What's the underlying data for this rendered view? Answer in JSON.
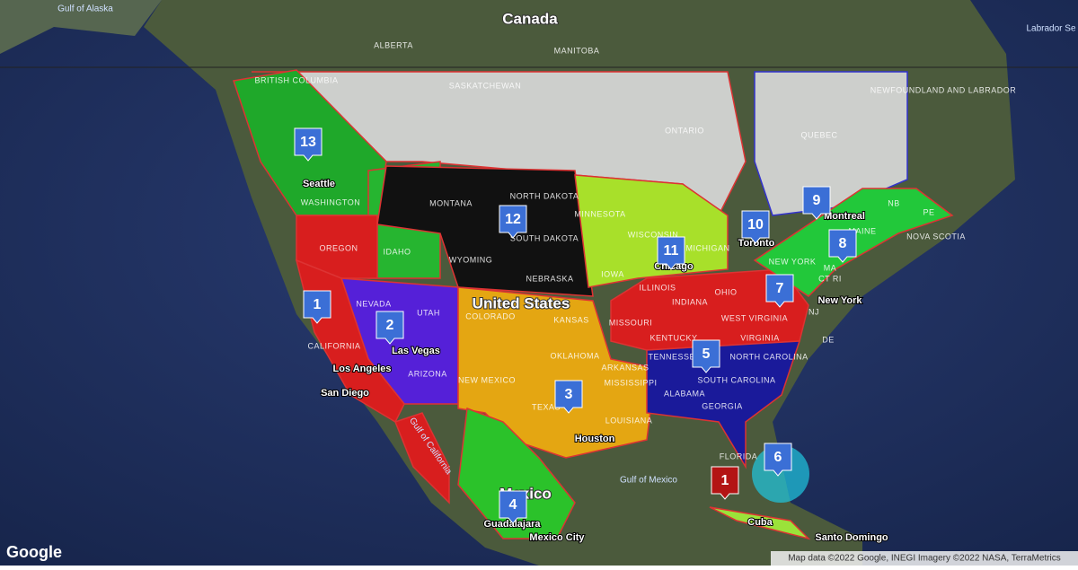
{
  "map": {
    "labels": [
      "Gulf of Alaska",
      "Canada",
      "ALBERTA",
      "MANITOBA",
      "Labrador Se",
      "BRITISH COLUMBIA",
      "SASKATCHEWAN",
      "NEWFOUNDLAND AND LABRADOR",
      "ONTARIO",
      "QUEBEC",
      "Seattle",
      "WASHINGTON",
      "MONTANA",
      "NORTH DAKOTA",
      "SOUTH DAKOTA",
      "MINNESOTA",
      "WISCONSIN",
      "MICHIGAN",
      "OREGON",
      "IDAHO",
      "WYOMING",
      "NEBRASKA",
      "IOWA",
      "Chicago",
      "Toronto",
      "Montreal",
      "NB",
      "PE",
      "MAINE",
      "NOVA SCOTIA",
      "NEW YORK",
      "MA",
      "CT RI",
      "New York",
      "NJ",
      "NEVADA",
      "UTAH",
      "COLORADO",
      "KANSAS",
      "United States",
      "ILLINOIS",
      "INDIANA",
      "OHIO",
      "MISSOURI",
      "WEST VIRGINIA",
      "KENTUCKY",
      "VIRGINIA",
      "DE",
      "CALIFORNIA",
      "Las Vegas",
      "Los Angeles",
      "ARIZONA",
      "San Diego",
      "OKLAHOMA",
      "ARKANSAS",
      "NEW MEXICO",
      "TEXAS",
      "MISSISSIPPI",
      "TENNESSEE",
      "NORTH CAROLINA",
      "SOUTH CAROLINA",
      "ALABAMA",
      "GEORGIA",
      "LOUISIANA",
      "Houston",
      "FLORIDA",
      "Gulf of California",
      "Gulf of Mexico",
      "Mexico",
      "Guadalajara",
      "Mexico City",
      "Cuba",
      "Santo Domingo"
    ],
    "markers": [
      "13",
      "12",
      "11",
      "10",
      "9",
      "8",
      "7",
      "1",
      "2",
      "3",
      "5",
      "6",
      "1",
      "4"
    ],
    "logo": "Google",
    "attribution": "Map data ©2022 Google, INEGI Imagery ©2022 NASA, TerraMetrics"
  }
}
